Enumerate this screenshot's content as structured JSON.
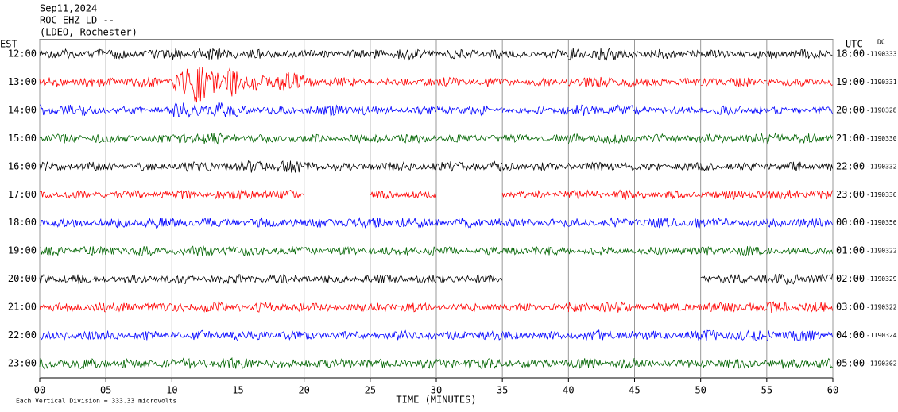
{
  "chart_data": {
    "type": "helicorder",
    "title_lines": [
      "Sep11,2024",
      "ROC EHZ LD --",
      "(LDEO, Rochester)"
    ],
    "left_axis_label": "EST",
    "right_axis_label": "UTC",
    "dc_label": "DC",
    "x_label": "TIME (MINUTES)",
    "scale_note": "Each Vertical Division =  333.33 microvolts",
    "xlim": [
      0,
      60
    ],
    "xticks": [
      {
        "value": 0,
        "label": "00"
      },
      {
        "value": 5,
        "label": "05"
      },
      10,
      15,
      20,
      25,
      30,
      35,
      40,
      45,
      50,
      55,
      60
    ],
    "grid": true,
    "rows": [
      {
        "est": "12:00",
        "utc": "18:00",
        "dc": "-1190333",
        "color": "#000000",
        "values": [
          0.35,
          0.35,
          0.45,
          0.35,
          0.3,
          0.4,
          0.35,
          0.3,
          0.45,
          0.35,
          0.3,
          0.35
        ]
      },
      {
        "est": "13:00",
        "utc": "19:00",
        "dc": "-1190331",
        "color": "#ff0000",
        "values": [
          0.35,
          0.4,
          1.5,
          0.7,
          0.35,
          0.3,
          0.35,
          0.3,
          0.4,
          0.3,
          0.35,
          0.3
        ]
      },
      {
        "est": "14:00",
        "utc": "20:00",
        "dc": "-1190328",
        "color": "#0000ff",
        "values": [
          0.45,
          0.3,
          0.6,
          0.3,
          0.45,
          0.3,
          0.35,
          0.3,
          0.4,
          0.3,
          0.35,
          0.3
        ]
      },
      {
        "est": "15:00",
        "utc": "21:00",
        "dc": "-1190330",
        "color": "#006400",
        "values": [
          0.35,
          0.3,
          0.45,
          0.3,
          0.3,
          0.35,
          0.3,
          0.3,
          0.4,
          0.35,
          0.35,
          0.4
        ]
      },
      {
        "est": "16:00",
        "utc": "22:00",
        "dc": "-1190332",
        "color": "#000000",
        "values": [
          0.35,
          0.3,
          0.4,
          0.45,
          0.35,
          0.35,
          0.4,
          0.3,
          0.35,
          0.3,
          0.3,
          0.35
        ]
      },
      {
        "est": "17:00",
        "utc": "23:00",
        "dc": "-1190336",
        "color": "#ff0000",
        "values": [
          0.3,
          0.3,
          0.35,
          0.4,
          null,
          0.3,
          null,
          0.3,
          0.35,
          0.3,
          0.35,
          0.4
        ]
      },
      {
        "est": "18:00",
        "utc": "00:00",
        "dc": "-1190356",
        "color": "#0000ff",
        "values": [
          0.35,
          0.4,
          0.35,
          0.35,
          0.35,
          0.4,
          0.35,
          0.3,
          0.35,
          0.4,
          0.35,
          0.35
        ]
      },
      {
        "est": "19:00",
        "utc": "01:00",
        "dc": "-1190322",
        "color": "#006400",
        "values": [
          0.35,
          0.35,
          0.4,
          0.35,
          0.3,
          0.35,
          0.3,
          0.35,
          0.3,
          0.3,
          0.35,
          0.3
        ]
      },
      {
        "est": "20:00",
        "utc": "02:00",
        "dc": "-1190329",
        "color": "#000000",
        "values": [
          0.35,
          0.3,
          0.35,
          0.35,
          0.3,
          0.35,
          0.3,
          null,
          null,
          null,
          0.35,
          0.4
        ]
      },
      {
        "est": "21:00",
        "utc": "03:00",
        "dc": "-1190322",
        "color": "#ff0000",
        "values": [
          0.35,
          0.35,
          0.4,
          0.4,
          0.3,
          0.35,
          0.3,
          0.3,
          0.4,
          0.35,
          0.4,
          0.4
        ]
      },
      {
        "est": "22:00",
        "utc": "04:00",
        "dc": "-1190324",
        "color": "#0000ff",
        "values": [
          0.35,
          0.35,
          0.4,
          0.35,
          0.3,
          0.35,
          0.35,
          0.3,
          0.4,
          0.35,
          0.4,
          0.4
        ]
      },
      {
        "est": "23:00",
        "utc": "05:00",
        "dc": "-1190302",
        "color": "#006400",
        "values": [
          0.4,
          0.35,
          0.4,
          0.35,
          0.4,
          0.35,
          0.4,
          0.35,
          0.4,
          0.3,
          0.35,
          0.4
        ]
      }
    ]
  }
}
